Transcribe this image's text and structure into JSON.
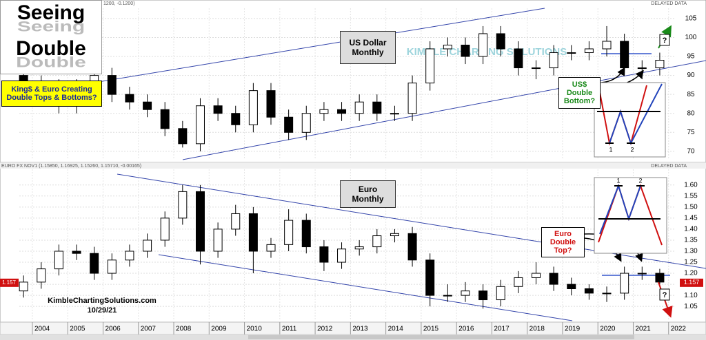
{
  "title_box": {
    "line1": "Seeing",
    "line2": "Double",
    "subtitle": "King$ & Euro Creating Double Tops & Bottoms?"
  },
  "watermark": "KIMBLE CHARTING SOLUTIONS",
  "credit": {
    "site": "KimbleChartingSolutions.com",
    "date": "10/29/21"
  },
  "chart_data": [
    {
      "type": "candlestick",
      "header": "1200, -0.1200)",
      "status": "DELAYED DATA",
      "title": "US Dollar Monthly",
      "annotation": "US$ Double Bottom?",
      "question": "?",
      "inset_labels": [
        "1",
        "2"
      ],
      "x": [
        2003.75,
        2004.25,
        2004.75,
        2005.25,
        2005.75,
        2006.25,
        2006.75,
        2007.25,
        2007.75,
        2008.25,
        2008.75,
        2009.25,
        2009.75,
        2010.25,
        2010.75,
        2011.25,
        2011.75,
        2012.25,
        2012.75,
        2013.25,
        2013.75,
        2014.25,
        2014.75,
        2015.25,
        2015.75,
        2016.25,
        2016.75,
        2017.25,
        2017.75,
        2018.25,
        2018.75,
        2019.25,
        2019.75,
        2020.25,
        2020.75,
        2021.25,
        2021.75
      ],
      "open": [
        90,
        88,
        87,
        82,
        87,
        90,
        85,
        83,
        81,
        76,
        72,
        82,
        80,
        77,
        86,
        79,
        75,
        80,
        81,
        80,
        83,
        80,
        80,
        88,
        97,
        98,
        95,
        101,
        97,
        92,
        92,
        96,
        96,
        97,
        99,
        92,
        92
      ],
      "high": [
        92,
        90,
        89,
        89,
        92,
        92,
        87,
        85,
        83,
        78,
        84,
        84,
        82,
        88,
        88,
        81,
        82,
        83,
        83,
        85,
        85,
        82,
        90,
        99,
        100,
        100,
        103,
        103,
        99,
        94,
        98,
        98,
        99,
        103,
        101,
        94,
        96
      ],
      "low": [
        86,
        85,
        80,
        80,
        85,
        83,
        81,
        79,
        74,
        71,
        70,
        78,
        75,
        75,
        77,
        73,
        73,
        78,
        78,
        78,
        78,
        78,
        78,
        86,
        95,
        93,
        93,
        95,
        90,
        89,
        90,
        94,
        94,
        95,
        90,
        89,
        90
      ],
      "close": [
        88,
        87,
        82,
        87,
        90,
        85,
        83,
        81,
        76,
        72,
        82,
        80,
        77,
        86,
        79,
        75,
        80,
        81,
        80,
        83,
        80,
        80,
        88,
        97,
        98,
        95,
        101,
        97,
        92,
        92,
        96,
        96,
        97,
        99,
        92,
        92,
        94
      ],
      "xlim": [
        2003.63,
        2022.2
      ],
      "ylim": [
        67.8,
        107.7
      ],
      "yticks": [
        70,
        75,
        80,
        85,
        90,
        95,
        100,
        105
      ],
      "grid": true,
      "up_color": "#ffffff",
      "down_color": "#000000"
    },
    {
      "type": "candlestick",
      "header": "EURO FX NOV1 (1.15850, 1.16925, 1.15260, 1.15710, -0.00165)",
      "status": "DELAYED DATA",
      "title": "Euro Monthly",
      "annotation": "Euro Double Top?",
      "question": "?",
      "inset_labels": [
        "1",
        "2"
      ],
      "last_price": 1.157,
      "x": [
        2003.75,
        2004.25,
        2004.75,
        2005.25,
        2005.75,
        2006.25,
        2006.75,
        2007.25,
        2007.75,
        2008.25,
        2008.75,
        2009.25,
        2009.75,
        2010.25,
        2010.75,
        2011.25,
        2011.75,
        2012.25,
        2012.75,
        2013.25,
        2013.75,
        2014.25,
        2014.75,
        2015.25,
        2015.75,
        2016.25,
        2016.75,
        2017.25,
        2017.75,
        2018.25,
        2018.75,
        2019.25,
        2019.75,
        2020.25,
        2020.75,
        2021.25,
        2021.75
      ],
      "open": [
        1.12,
        1.16,
        1.22,
        1.3,
        1.29,
        1.2,
        1.26,
        1.3,
        1.35,
        1.45,
        1.57,
        1.3,
        1.4,
        1.47,
        1.3,
        1.33,
        1.44,
        1.32,
        1.25,
        1.31,
        1.32,
        1.37,
        1.38,
        1.26,
        1.1,
        1.1,
        1.12,
        1.08,
        1.14,
        1.18,
        1.2,
        1.15,
        1.13,
        1.11,
        1.11,
        1.2,
        1.2
      ],
      "high": [
        1.19,
        1.25,
        1.33,
        1.33,
        1.32,
        1.29,
        1.33,
        1.38,
        1.48,
        1.6,
        1.6,
        1.43,
        1.51,
        1.5,
        1.36,
        1.49,
        1.47,
        1.35,
        1.34,
        1.35,
        1.4,
        1.4,
        1.41,
        1.29,
        1.15,
        1.16,
        1.15,
        1.17,
        1.21,
        1.25,
        1.23,
        1.18,
        1.15,
        1.14,
        1.23,
        1.23,
        1.22
      ],
      "low": [
        1.09,
        1.13,
        1.19,
        1.26,
        1.17,
        1.17,
        1.23,
        1.27,
        1.32,
        1.42,
        1.24,
        1.27,
        1.37,
        1.2,
        1.27,
        1.3,
        1.29,
        1.21,
        1.22,
        1.28,
        1.29,
        1.34,
        1.23,
        1.05,
        1.07,
        1.07,
        1.04,
        1.05,
        1.11,
        1.15,
        1.12,
        1.1,
        1.08,
        1.07,
        1.08,
        1.17,
        1.15
      ],
      "close": [
        1.16,
        1.22,
        1.3,
        1.29,
        1.2,
        1.26,
        1.3,
        1.35,
        1.45,
        1.57,
        1.3,
        1.4,
        1.47,
        1.3,
        1.33,
        1.44,
        1.32,
        1.25,
        1.31,
        1.32,
        1.37,
        1.38,
        1.26,
        1.1,
        1.1,
        1.12,
        1.08,
        1.14,
        1.18,
        1.2,
        1.15,
        1.13,
        1.11,
        1.11,
        1.2,
        1.2,
        1.16
      ],
      "xlim": [
        2003.63,
        2022.2
      ],
      "ylim": [
        0.985,
        1.671
      ],
      "yticks": [
        1.05,
        {
          "value": 1.1,
          "label": "1.10"
        },
        1.15,
        {
          "value": 1.2,
          "label": "1.20"
        },
        1.25,
        {
          "value": 1.3,
          "label": "1.30"
        },
        1.35,
        {
          "value": 1.4,
          "label": "1.40"
        },
        1.45,
        {
          "value": 1.5,
          "label": "1.50"
        },
        1.55,
        {
          "value": 1.6,
          "label": "1.60"
        }
      ],
      "xticks": [
        2004,
        2005,
        2006,
        2007,
        2008,
        2009,
        2010,
        2011,
        2012,
        2013,
        2014,
        2015,
        2016,
        2017,
        2018,
        2019,
        2020,
        2021,
        2022
      ],
      "grid": true,
      "up_color": "#ffffff",
      "down_color": "#000000"
    }
  ]
}
